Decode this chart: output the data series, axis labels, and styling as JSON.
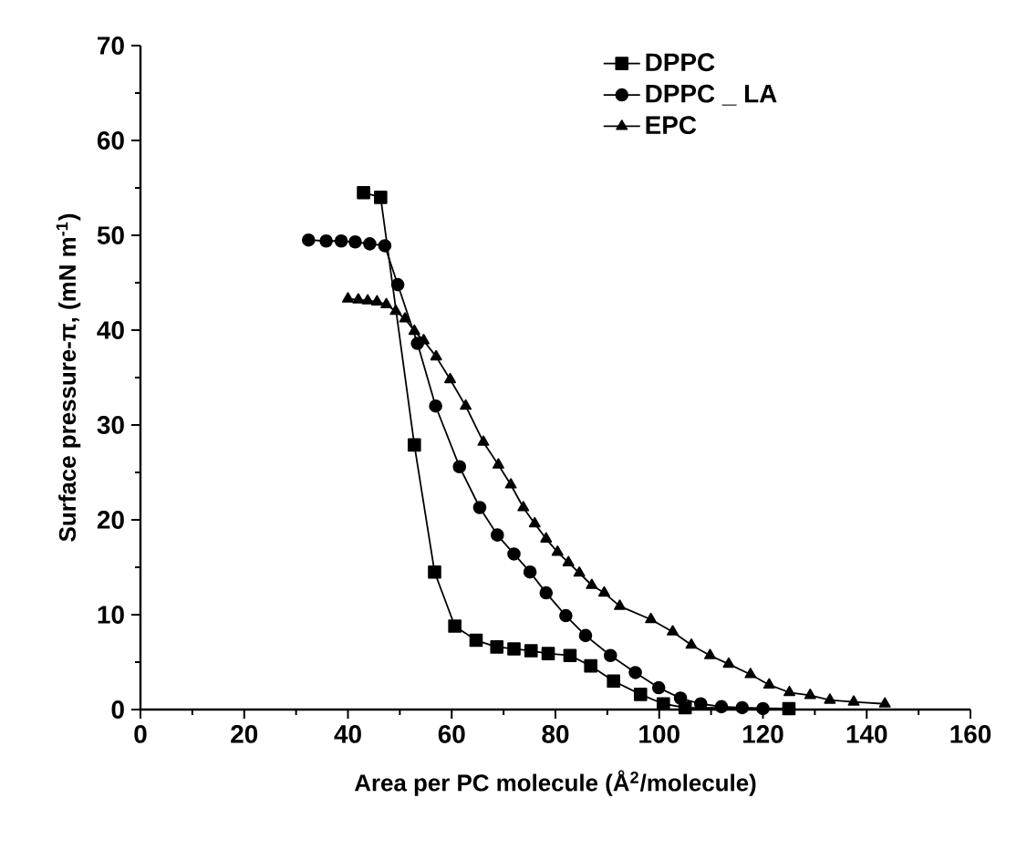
{
  "chart_data": {
    "type": "line",
    "xlabel": "Area per PC molecule (Å$^{2}$/molecule)",
    "ylabel": "Surface pressure-π, (mN m$^{-1}$)",
    "xlim": [
      0,
      160
    ],
    "xticks": [
      0,
      20,
      40,
      60,
      80,
      100,
      120,
      140,
      160
    ],
    "ylim": [
      0,
      70
    ],
    "yticks": [
      0,
      10,
      20,
      30,
      40,
      50,
      60,
      70
    ],
    "grid": false,
    "legend": "top right",
    "line_style": "solid",
    "series": [
      {
        "name": "DPPC",
        "color": "#000000",
        "marker": "square",
        "x": [
          43.0,
          46.3,
          52.8,
          56.7,
          60.6,
          64.7,
          68.7,
          72.0,
          75.3,
          78.6,
          82.8,
          86.8,
          91.2,
          96.4,
          100.8,
          105,
          125
        ],
        "values": [
          54.5,
          54.0,
          27.9,
          14.5,
          8.8,
          7.3,
          6.6,
          6.4,
          6.2,
          5.9,
          5.7,
          4.6,
          3.0,
          1.6,
          0.6,
          0.2,
          0.1
        ]
      },
      {
        "name": "DPPC _ LA",
        "color": "#000000",
        "marker": "circle",
        "x": [
          32.4,
          35.8,
          38.7,
          41.4,
          44.2,
          47.1,
          49.6,
          53.4,
          56.9,
          61.5,
          65.4,
          68.8,
          72.0,
          75.1,
          78.2,
          82.0,
          85.8,
          90.6,
          95.4,
          99.9,
          104.1,
          108.0,
          112,
          116,
          120
        ],
        "values": [
          49.5,
          49.4,
          49.4,
          49.3,
          49.1,
          48.9,
          44.8,
          38.6,
          32.0,
          25.6,
          21.3,
          18.4,
          16.4,
          14.5,
          12.3,
          9.9,
          7.8,
          5.7,
          3.9,
          2.3,
          1.2,
          0.6,
          0.3,
          0.2,
          0.1
        ]
      },
      {
        "name": "EPC",
        "color": "#000000",
        "marker": "triangle",
        "x": [
          40.0,
          42.0,
          43.8,
          45.6,
          47.4,
          49.2,
          51.0,
          52.8,
          54.6,
          57.0,
          59.7,
          62.7,
          66.1,
          69.0,
          71.4,
          73.8,
          76.0,
          78.2,
          80.4,
          82.5,
          84.6,
          87.0,
          89.4,
          92.4,
          98.4,
          102.6,
          106.2,
          109.8,
          113.4,
          117.6,
          121.2,
          125.1,
          129.1,
          132.9,
          137.5,
          143.5
        ],
        "values": [
          43.3,
          43.2,
          43.1,
          43.0,
          42.7,
          42.0,
          41.2,
          39.9,
          38.9,
          37.2,
          34.8,
          32.0,
          28.2,
          25.8,
          23.7,
          21.3,
          19.6,
          18.0,
          16.6,
          15.5,
          14.4,
          13.1,
          12.3,
          10.9,
          9.5,
          8.2,
          6.8,
          5.7,
          4.8,
          3.7,
          2.6,
          1.8,
          1.5,
          1.0,
          0.8,
          0.6
        ]
      }
    ]
  }
}
